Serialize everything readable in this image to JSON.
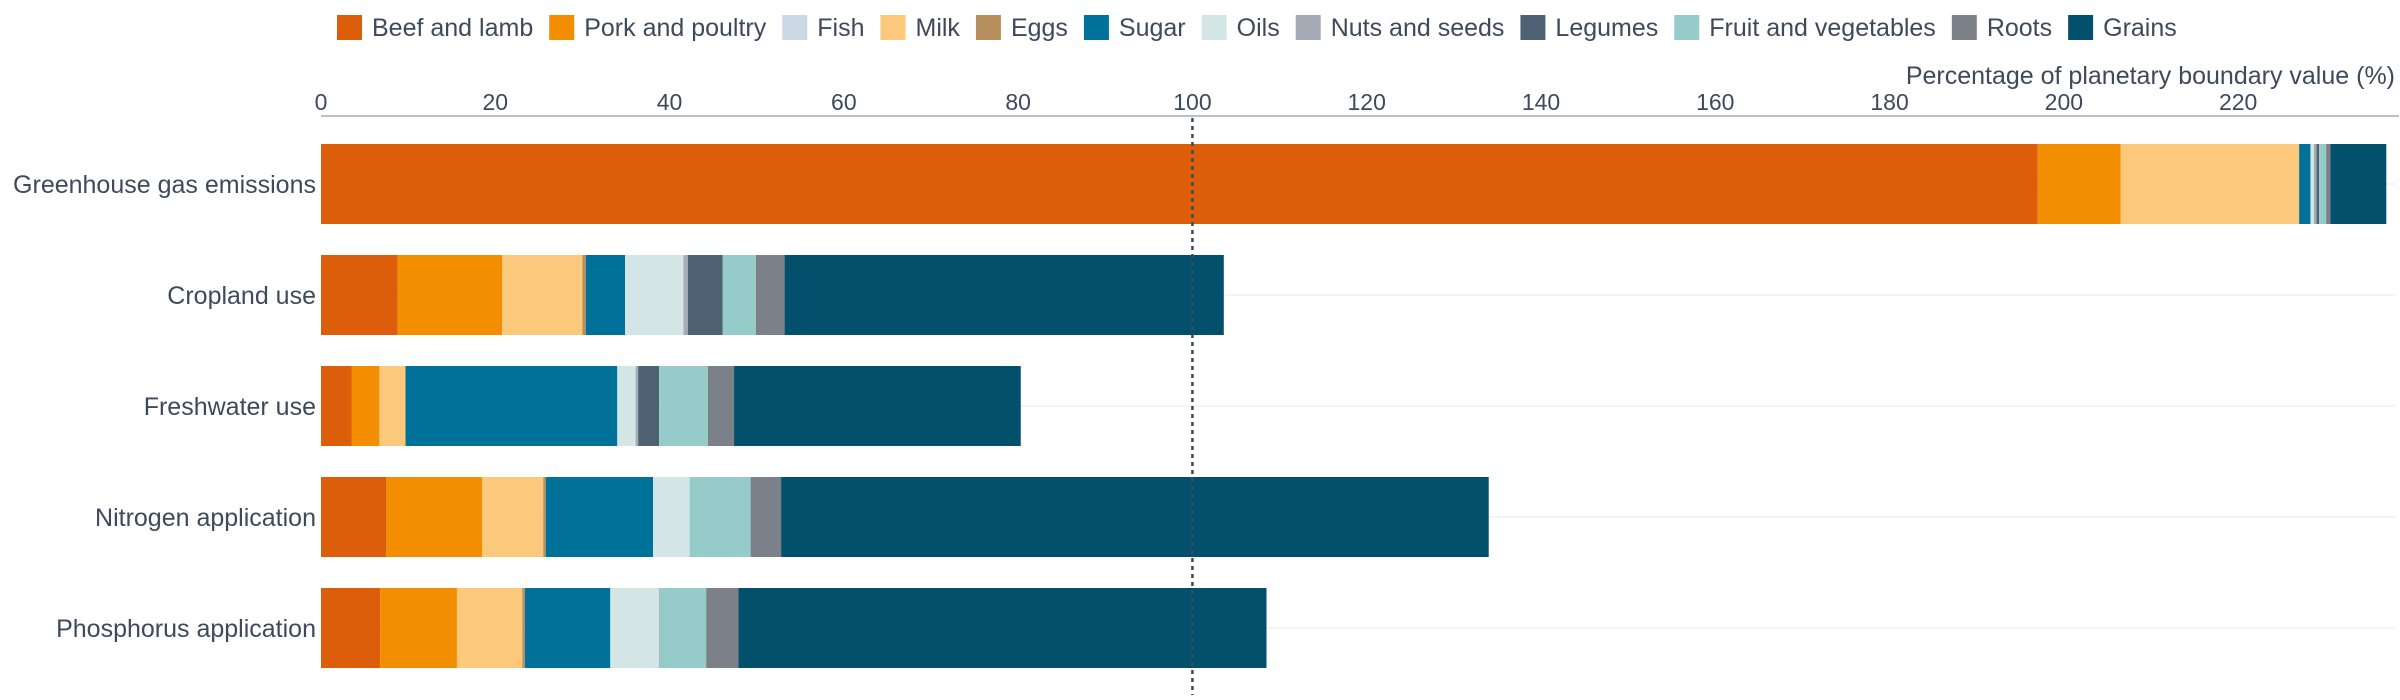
{
  "chart_data": {
    "type": "bar",
    "orientation": "horizontal",
    "stacked": true,
    "xlabel": "Percentage of planetary boundary value (%)",
    "xlim": [
      0,
      238
    ],
    "xticks": [
      0,
      20,
      40,
      60,
      80,
      100,
      120,
      140,
      160,
      180,
      200,
      220
    ],
    "reference_line": 100,
    "legend_position": "top",
    "categories": [
      "Greenhouse gas emissions",
      "Cropland use",
      "Freshwater use",
      "Nitrogen application",
      "Phosphorus application"
    ],
    "series": [
      {
        "name": "Beef and lamb",
        "color": "#dc5e0a",
        "values": [
          197,
          8.8,
          3.5,
          7.5,
          6.8
        ]
      },
      {
        "name": "Pork and poultry",
        "color": "#f28e00",
        "values": [
          9.5,
          12,
          3.2,
          11,
          8.8
        ]
      },
      {
        "name": "Fish",
        "color": "#cbd8e5",
        "values": [
          0,
          0,
          0,
          0,
          0
        ]
      },
      {
        "name": "Milk",
        "color": "#fcc97c",
        "values": [
          20.5,
          9.2,
          3,
          7,
          7.5
        ]
      },
      {
        "name": "Eggs",
        "color": "#b78f5d",
        "values": [
          0,
          0.4,
          0,
          0.3,
          0.3
        ]
      },
      {
        "name": "Sugar",
        "color": "#00729a",
        "values": [
          1.3,
          4.5,
          24.3,
          12.3,
          9.8
        ]
      },
      {
        "name": "Oils",
        "color": "#d3e6e5",
        "values": [
          0.4,
          6.7,
          2.1,
          4.2,
          5.6
        ]
      },
      {
        "name": "Nuts and seeds",
        "color": "#a4abb5",
        "values": [
          0.3,
          0.5,
          0.3,
          0,
          0.1
        ]
      },
      {
        "name": "Legumes",
        "color": "#4e6273",
        "values": [
          0.3,
          4,
          2.4,
          0,
          0
        ]
      },
      {
        "name": "Fruit and vegetables",
        "color": "#95ccca",
        "values": [
          0.8,
          3.8,
          5.6,
          7,
          5.3
        ]
      },
      {
        "name": "Roots",
        "color": "#7b8089",
        "values": [
          0.5,
          3.3,
          3,
          3.5,
          3.7
        ]
      },
      {
        "name": "Grains",
        "color": "#02506b",
        "values": [
          6.4,
          50.4,
          32.9,
          81.2,
          60.6
        ]
      }
    ]
  }
}
